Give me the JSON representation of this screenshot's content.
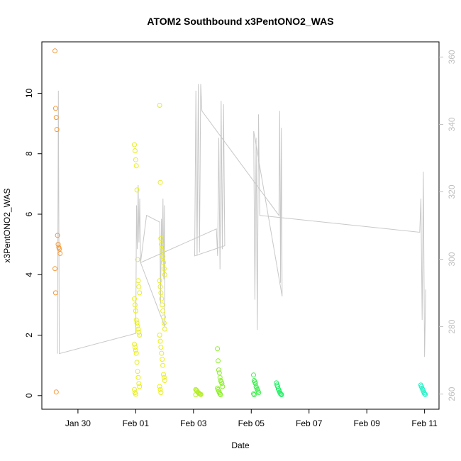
{
  "chart_data": {
    "type": "scatter",
    "title": "ATOM2 Southbound x3PentONO2_WAS",
    "xlabel": "Date",
    "ylabel": "x3PentONO2_WAS",
    "xlim": [
      "2017-01-28T18:00",
      "2017-02-11T12:00"
    ],
    "ylim": [
      -0.45,
      11.7
    ],
    "y2lim": [
      255.5,
      364.5
    ],
    "x_ticks": [
      {
        "label": "Jan 30",
        "date": "2017-01-30"
      },
      {
        "label": "Feb 01",
        "date": "2017-02-01"
      },
      {
        "label": "Feb 03",
        "date": "2017-02-03"
      },
      {
        "label": "Feb 05",
        "date": "2017-02-05"
      },
      {
        "label": "Feb 07",
        "date": "2017-02-07"
      },
      {
        "label": "Feb 09",
        "date": "2017-02-09"
      },
      {
        "label": "Feb 11",
        "date": "2017-02-11"
      }
    ],
    "y_ticks": [
      0,
      2,
      4,
      6,
      8,
      10
    ],
    "y2_ticks": [
      260,
      280,
      300,
      320,
      340,
      360
    ],
    "grid": false,
    "colors": {
      "line": "#c8c8c8",
      "axis": "#000000",
      "right_axis": "#bfbfbf"
    },
    "series": [
      {
        "date": "2017-01-29T07:00",
        "color": "#f39a3a",
        "values": [
          11.4,
          9.5,
          9.2,
          8.8,
          5.3,
          5.0,
          4.9,
          4.85,
          4.7,
          4.2,
          3.4,
          0.12
        ]
      },
      {
        "date": "2017-02-01T01:00",
        "color": "#e8ee1c",
        "values": [
          8.3,
          8.1,
          7.8,
          7.6,
          6.8,
          4.5,
          3.8,
          3.6,
          3.4,
          3.2,
          3.0,
          2.8,
          2.5,
          2.4,
          2.3,
          2.2,
          2.1,
          2.0,
          1.7,
          1.6,
          1.5,
          1.4,
          1.1,
          0.8,
          0.6,
          0.4,
          0.3,
          0.2,
          0.1,
          0.05
        ]
      },
      {
        "date": "2017-02-01T22:00",
        "color": "#e8ee1c",
        "values": [
          9.6,
          7.05,
          5.2,
          5.0,
          4.8,
          4.6,
          4.4,
          4.2,
          4.0,
          3.8,
          3.6,
          3.4,
          3.2,
          3.0,
          2.8,
          2.6,
          2.4,
          2.2,
          2.0,
          1.8,
          1.6,
          1.4,
          1.2,
          1.0,
          0.7,
          0.6,
          0.5,
          0.3,
          0.2,
          0.1
        ]
      },
      {
        "date": "2017-02-03T04:00",
        "color": "#b4ee28",
        "values": [
          0.2,
          0.18,
          0.15,
          0.12,
          0.1,
          0.08,
          0.06,
          0.05,
          0.04,
          0.03
        ]
      },
      {
        "date": "2017-02-03T22:00",
        "color": "#8cf02a",
        "values": [
          1.55,
          1.15,
          0.85,
          0.75,
          0.6,
          0.5,
          0.45,
          0.4,
          0.3,
          0.25,
          0.2,
          0.15,
          0.1,
          0.06,
          0.03
        ]
      },
      {
        "date": "2017-02-05T04:00",
        "color": "#3cf04c",
        "values": [
          0.68,
          0.5,
          0.45,
          0.4,
          0.3,
          0.25,
          0.2,
          0.15,
          0.1,
          0.06,
          0.03
        ]
      },
      {
        "date": "2017-02-05T23:00",
        "color": "#1ef062",
        "values": [
          0.42,
          0.35,
          0.3,
          0.22,
          0.18,
          0.12,
          0.08,
          0.05,
          0.03
        ]
      },
      {
        "date": "2017-02-10T23:00",
        "color": "#26f0c6",
        "values": [
          0.35,
          0.3,
          0.25,
          0.2,
          0.15,
          0.1,
          0.06,
          0.04
        ]
      }
    ],
    "line_y2": [
      [
        "2017-01-29T07:00",
        272
      ],
      [
        "2017-01-29T07:45",
        350
      ],
      [
        "2017-01-29T08:30",
        272
      ],
      [
        "2017-02-01T00:00",
        278
      ],
      [
        "2017-02-01T00:40",
        316
      ],
      [
        "2017-02-01T01:20",
        303
      ],
      [
        "2017-02-01T02:00",
        322
      ],
      [
        "2017-02-01T02:40",
        305
      ],
      [
        "2017-02-01T03:20",
        318
      ],
      [
        "2017-02-01T04:00",
        299
      ],
      [
        "2017-02-01T09:00",
        313
      ],
      [
        "2017-02-01T20:00",
        311
      ],
      [
        "2017-02-01T20:40",
        287
      ],
      [
        "2017-02-01T21:20",
        312
      ],
      [
        "2017-02-01T22:00",
        299
      ],
      [
        "2017-02-01T22:40",
        318
      ],
      [
        "2017-02-01T23:20",
        294
      ],
      [
        "2017-02-01T23:50",
        316
      ],
      [
        "2017-02-02T00:10",
        280
      ],
      [
        "2017-02-01T04:00",
        299
      ],
      [
        "2017-02-03T19:00",
        309
      ],
      [
        "2017-02-03T20:00",
        301
      ],
      [
        "2017-02-03T21:00",
        336
      ],
      [
        "2017-02-03T22:00",
        297
      ],
      [
        "2017-02-03T23:00",
        347
      ],
      [
        "2017-02-04T00:00",
        303
      ],
      [
        "2017-02-04T01:00",
        346
      ],
      [
        "2017-02-04T02:00",
        304
      ],
      [
        "2017-02-03T01:00",
        301
      ],
      [
        "2017-02-03T02:00",
        350
      ],
      [
        "2017-02-03T03:00",
        301
      ],
      [
        "2017-02-03T04:00",
        352
      ],
      [
        "2017-02-03T05:00",
        302
      ],
      [
        "2017-02-03T06:00",
        352
      ],
      [
        "2017-02-03T07:00",
        344
      ],
      [
        "2017-02-05T23:00",
        313
      ],
      [
        "2017-02-05T23:40",
        344
      ],
      [
        "2017-02-06T00:20",
        293
      ],
      [
        "2017-02-06T01:00",
        339
      ],
      [
        "2017-02-06T01:40",
        289
      ],
      [
        "2017-02-05T02:00",
        338
      ],
      [
        "2017-02-05T03:00",
        288
      ],
      [
        "2017-02-05T04:00",
        336
      ],
      [
        "2017-02-05T05:00",
        279
      ],
      [
        "2017-02-05T06:00",
        343
      ],
      [
        "2017-02-05T07:00",
        313
      ],
      [
        "2017-02-10T20:00",
        308
      ],
      [
        "2017-02-10T21:00",
        318
      ],
      [
        "2017-02-10T22:00",
        282
      ],
      [
        "2017-02-10T23:00",
        326
      ],
      [
        "2017-02-11T00:00",
        271
      ],
      [
        "2017-02-11T01:00",
        291
      ]
    ]
  }
}
